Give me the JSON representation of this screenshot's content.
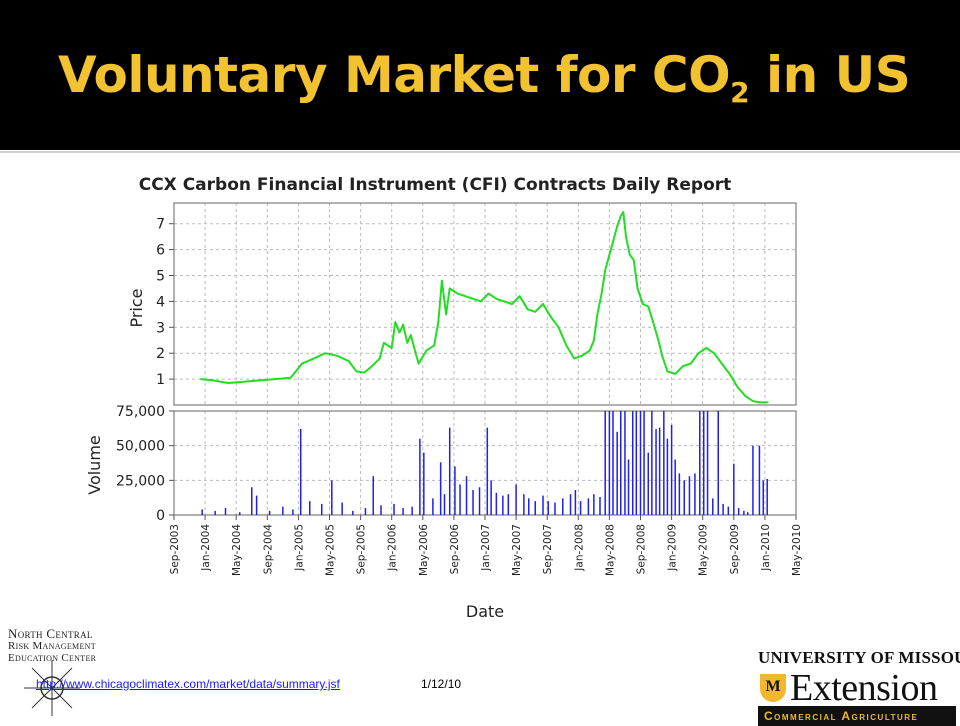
{
  "slide": {
    "title": "Voluntary Market for CO",
    "title_subscript": "2",
    "title_suffix": " in US",
    "source_link": "http://www.chicagoclimatex.com/market/data/summary.jsf",
    "source_date": "1/12/10",
    "logo_left_lines": [
      "North Central",
      "Risk Management",
      "Education Center"
    ],
    "logo_right_university": "UNIVERSITY OF MISSOURI",
    "logo_right_shield": "M",
    "logo_right_extension": "Extension",
    "logo_right_bar": "Commercial Agriculture",
    "header_bg": "#000000",
    "title_color": "#f2c230"
  },
  "chart_data": {
    "type": "line",
    "title": "CCX Carbon Financial Instrument (CFI) Contracts Daily Report",
    "xlabel": "Date",
    "x_ticks": [
      "Sep-2003",
      "Jan-2004",
      "May-2004",
      "Sep-2004",
      "Jan-2005",
      "May-2005",
      "Sep-2005",
      "Jan-2006",
      "May-2006",
      "Sep-2006",
      "Jan-2007",
      "May-2007",
      "Sep-2007",
      "Jan-2008",
      "May-2008",
      "Sep-2008",
      "Jan-2009",
      "May-2009",
      "Sep-2009",
      "Jan-2010",
      "May-2010"
    ],
    "price_panel": {
      "ylabel": "Price",
      "ylim": [
        0,
        7.8
      ],
      "yticks": [
        "1",
        "2",
        "3",
        "4",
        "5",
        "6",
        "7"
      ],
      "line_color": "#22dd22",
      "series": [
        {
          "x": "2003-12-15",
          "y": 1.0
        },
        {
          "x": "2004-02-01",
          "y": 0.95
        },
        {
          "x": "2004-04-01",
          "y": 0.85
        },
        {
          "x": "2004-06-01",
          "y": 0.9
        },
        {
          "x": "2004-08-01",
          "y": 0.95
        },
        {
          "x": "2004-10-01",
          "y": 1.0
        },
        {
          "x": "2004-12-01",
          "y": 1.05
        },
        {
          "x": "2005-01-15",
          "y": 1.6
        },
        {
          "x": "2005-03-01",
          "y": 1.8
        },
        {
          "x": "2005-04-15",
          "y": 2.0
        },
        {
          "x": "2005-06-01",
          "y": 1.9
        },
        {
          "x": "2005-07-15",
          "y": 1.7
        },
        {
          "x": "2005-08-15",
          "y": 1.3
        },
        {
          "x": "2005-09-15",
          "y": 1.25
        },
        {
          "x": "2005-10-15",
          "y": 1.5
        },
        {
          "x": "2005-11-15",
          "y": 1.8
        },
        {
          "x": "2005-12-01",
          "y": 2.4
        },
        {
          "x": "2006-01-01",
          "y": 2.2
        },
        {
          "x": "2006-01-15",
          "y": 3.2
        },
        {
          "x": "2006-02-01",
          "y": 2.8
        },
        {
          "x": "2006-02-15",
          "y": 3.1
        },
        {
          "x": "2006-03-01",
          "y": 2.4
        },
        {
          "x": "2006-03-15",
          "y": 2.7
        },
        {
          "x": "2006-04-15",
          "y": 1.6
        },
        {
          "x": "2006-05-15",
          "y": 2.1
        },
        {
          "x": "2006-06-15",
          "y": 2.3
        },
        {
          "x": "2006-07-01",
          "y": 3.2
        },
        {
          "x": "2006-07-15",
          "y": 4.8
        },
        {
          "x": "2006-08-01",
          "y": 3.5
        },
        {
          "x": "2006-08-15",
          "y": 4.5
        },
        {
          "x": "2006-09-15",
          "y": 4.3
        },
        {
          "x": "2006-10-15",
          "y": 4.2
        },
        {
          "x": "2006-11-15",
          "y": 4.1
        },
        {
          "x": "2006-12-15",
          "y": 4.0
        },
        {
          "x": "2007-01-15",
          "y": 4.3
        },
        {
          "x": "2007-02-15",
          "y": 4.1
        },
        {
          "x": "2007-03-15",
          "y": 4.0
        },
        {
          "x": "2007-04-15",
          "y": 3.9
        },
        {
          "x": "2007-05-15",
          "y": 4.2
        },
        {
          "x": "2007-06-15",
          "y": 3.7
        },
        {
          "x": "2007-07-15",
          "y": 3.6
        },
        {
          "x": "2007-08-15",
          "y": 3.9
        },
        {
          "x": "2007-09-15",
          "y": 3.4
        },
        {
          "x": "2007-10-15",
          "y": 3.0
        },
        {
          "x": "2007-11-15",
          "y": 2.3
        },
        {
          "x": "2007-12-15",
          "y": 1.8
        },
        {
          "x": "2008-01-15",
          "y": 1.9
        },
        {
          "x": "2008-02-15",
          "y": 2.1
        },
        {
          "x": "2008-03-01",
          "y": 2.5
        },
        {
          "x": "2008-03-15",
          "y": 3.5
        },
        {
          "x": "2008-04-01",
          "y": 4.3
        },
        {
          "x": "2008-04-15",
          "y": 5.2
        },
        {
          "x": "2008-05-01",
          "y": 5.8
        },
        {
          "x": "2008-05-15",
          "y": 6.3
        },
        {
          "x": "2008-06-01",
          "y": 6.9
        },
        {
          "x": "2008-06-15",
          "y": 7.3
        },
        {
          "x": "2008-06-25",
          "y": 7.45
        },
        {
          "x": "2008-07-05",
          "y": 6.5
        },
        {
          "x": "2008-07-20",
          "y": 5.8
        },
        {
          "x": "2008-08-05",
          "y": 5.6
        },
        {
          "x": "2008-08-20",
          "y": 4.5
        },
        {
          "x": "2008-09-10",
          "y": 3.9
        },
        {
          "x": "2008-10-01",
          "y": 3.8
        },
        {
          "x": "2008-10-20",
          "y": 3.2
        },
        {
          "x": "2008-11-10",
          "y": 2.5
        },
        {
          "x": "2008-11-25",
          "y": 1.9
        },
        {
          "x": "2008-12-15",
          "y": 1.3
        },
        {
          "x": "2009-01-15",
          "y": 1.2
        },
        {
          "x": "2009-02-15",
          "y": 1.5
        },
        {
          "x": "2009-03-15",
          "y": 1.6
        },
        {
          "x": "2009-04-15",
          "y": 2.0
        },
        {
          "x": "2009-05-15",
          "y": 2.2
        },
        {
          "x": "2009-06-15",
          "y": 2.0
        },
        {
          "x": "2009-07-15",
          "y": 1.6
        },
        {
          "x": "2009-08-15",
          "y": 1.2
        },
        {
          "x": "2009-09-15",
          "y": 0.7
        },
        {
          "x": "2009-10-15",
          "y": 0.35
        },
        {
          "x": "2009-11-15",
          "y": 0.15
        },
        {
          "x": "2009-12-15",
          "y": 0.1
        },
        {
          "x": "2010-01-12",
          "y": 0.1
        }
      ]
    },
    "volume_panel": {
      "ylabel": "Volume",
      "ylim": [
        0,
        75000
      ],
      "yticks": [
        "0",
        "25,000",
        "50,000",
        "75,000"
      ],
      "bar_color": "#1f1fee",
      "series": [
        {
          "x": "2003-12-20",
          "y": 4000
        },
        {
          "x": "2004-02-10",
          "y": 3000
        },
        {
          "x": "2004-03-20",
          "y": 5000
        },
        {
          "x": "2004-05-15",
          "y": 2000
        },
        {
          "x": "2004-07-01",
          "y": 20000
        },
        {
          "x": "2004-07-20",
          "y": 14000
        },
        {
          "x": "2004-09-10",
          "y": 3000
        },
        {
          "x": "2004-11-01",
          "y": 6000
        },
        {
          "x": "2004-12-10",
          "y": 4000
        },
        {
          "x": "2005-01-10",
          "y": 62000
        },
        {
          "x": "2005-02-15",
          "y": 10000
        },
        {
          "x": "2005-04-01",
          "y": 8000
        },
        {
          "x": "2005-05-10",
          "y": 25000
        },
        {
          "x": "2005-06-20",
          "y": 9000
        },
        {
          "x": "2005-08-01",
          "y": 3000
        },
        {
          "x": "2005-09-20",
          "y": 5000
        },
        {
          "x": "2005-10-20",
          "y": 28000
        },
        {
          "x": "2005-11-20",
          "y": 7000
        },
        {
          "x": "2006-01-10",
          "y": 8000
        },
        {
          "x": "2006-02-15",
          "y": 5000
        },
        {
          "x": "2006-03-20",
          "y": 6000
        },
        {
          "x": "2006-04-20",
          "y": 55000
        },
        {
          "x": "2006-05-05",
          "y": 45000
        },
        {
          "x": "2006-06-10",
          "y": 12000
        },
        {
          "x": "2006-07-10",
          "y": 38000
        },
        {
          "x": "2006-07-25",
          "y": 15000
        },
        {
          "x": "2006-08-15",
          "y": 63000
        },
        {
          "x": "2006-09-05",
          "y": 35000
        },
        {
          "x": "2006-09-25",
          "y": 22000
        },
        {
          "x": "2006-10-20",
          "y": 28000
        },
        {
          "x": "2006-11-15",
          "y": 18000
        },
        {
          "x": "2006-12-10",
          "y": 20000
        },
        {
          "x": "2007-01-10",
          "y": 63000
        },
        {
          "x": "2007-01-25",
          "y": 25000
        },
        {
          "x": "2007-02-15",
          "y": 16000
        },
        {
          "x": "2007-03-10",
          "y": 14000
        },
        {
          "x": "2007-04-01",
          "y": 15000
        },
        {
          "x": "2007-05-01",
          "y": 22000
        },
        {
          "x": "2007-06-01",
          "y": 15000
        },
        {
          "x": "2007-06-20",
          "y": 12000
        },
        {
          "x": "2007-07-15",
          "y": 10000
        },
        {
          "x": "2007-08-15",
          "y": 14000
        },
        {
          "x": "2007-09-05",
          "y": 10000
        },
        {
          "x": "2007-10-01",
          "y": 9000
        },
        {
          "x": "2007-11-01",
          "y": 12000
        },
        {
          "x": "2007-12-01",
          "y": 15000
        },
        {
          "x": "2007-12-20",
          "y": 18000
        },
        {
          "x": "2008-01-10",
          "y": 10000
        },
        {
          "x": "2008-02-10",
          "y": 12000
        },
        {
          "x": "2008-03-01",
          "y": 15000
        },
        {
          "x": "2008-03-25",
          "y": 13000
        },
        {
          "x": "2008-04-15",
          "y": 75000
        },
        {
          "x": "2008-05-01",
          "y": 75000
        },
        {
          "x": "2008-05-15",
          "y": 75000
        },
        {
          "x": "2008-06-01",
          "y": 60000
        },
        {
          "x": "2008-06-15",
          "y": 75000
        },
        {
          "x": "2008-07-01",
          "y": 75000
        },
        {
          "x": "2008-07-15",
          "y": 40000
        },
        {
          "x": "2008-08-01",
          "y": 75000
        },
        {
          "x": "2008-08-15",
          "y": 75000
        },
        {
          "x": "2008-09-01",
          "y": 75000
        },
        {
          "x": "2008-09-15",
          "y": 75000
        },
        {
          "x": "2008-10-01",
          "y": 45000
        },
        {
          "x": "2008-10-15",
          "y": 75000
        },
        {
          "x": "2008-11-01",
          "y": 62000
        },
        {
          "x": "2008-11-15",
          "y": 63000
        },
        {
          "x": "2008-12-01",
          "y": 75000
        },
        {
          "x": "2008-12-15",
          "y": 55000
        },
        {
          "x": "2009-01-01",
          "y": 65000
        },
        {
          "x": "2009-01-15",
          "y": 40000
        },
        {
          "x": "2009-02-01",
          "y": 30000
        },
        {
          "x": "2009-02-20",
          "y": 25000
        },
        {
          "x": "2009-03-10",
          "y": 28000
        },
        {
          "x": "2009-04-01",
          "y": 30000
        },
        {
          "x": "2009-04-20",
          "y": 75000
        },
        {
          "x": "2009-05-05",
          "y": 75000
        },
        {
          "x": "2009-05-20",
          "y": 75000
        },
        {
          "x": "2009-06-10",
          "y": 12000
        },
        {
          "x": "2009-07-01",
          "y": 75000
        },
        {
          "x": "2009-07-20",
          "y": 8000
        },
        {
          "x": "2009-08-10",
          "y": 6000
        },
        {
          "x": "2009-09-01",
          "y": 37000
        },
        {
          "x": "2009-09-20",
          "y": 5000
        },
        {
          "x": "2009-10-10",
          "y": 3000
        },
        {
          "x": "2009-10-25",
          "y": 2000
        },
        {
          "x": "2009-11-15",
          "y": 50000
        },
        {
          "x": "2009-12-10",
          "y": 50000
        },
        {
          "x": "2009-12-25",
          "y": 25000
        },
        {
          "x": "2010-01-10",
          "y": 26000
        }
      ]
    },
    "grid": true,
    "legend": "none"
  }
}
